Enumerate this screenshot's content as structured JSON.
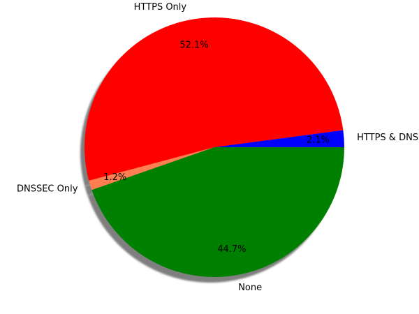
{
  "chart_data": {
    "type": "pie",
    "title": "",
    "slices": [
      {
        "label": "HTTPS & DNSSEC",
        "value": 2.1,
        "pct_label": "2.1%",
        "color": "#0000ff"
      },
      {
        "label": "HTTPS Only",
        "value": 52.1,
        "pct_label": "52.1%",
        "color": "#ff0000"
      },
      {
        "label": "DNSSEC Only",
        "value": 1.2,
        "pct_label": "1.2%",
        "color": "#ff7f50"
      },
      {
        "label": "None",
        "value": 44.7,
        "pct_label": "44.7%",
        "color": "#008000"
      }
    ],
    "start_angle_deg": 0,
    "direction": "counterclockwise",
    "shadow": true,
    "legend": "none"
  }
}
